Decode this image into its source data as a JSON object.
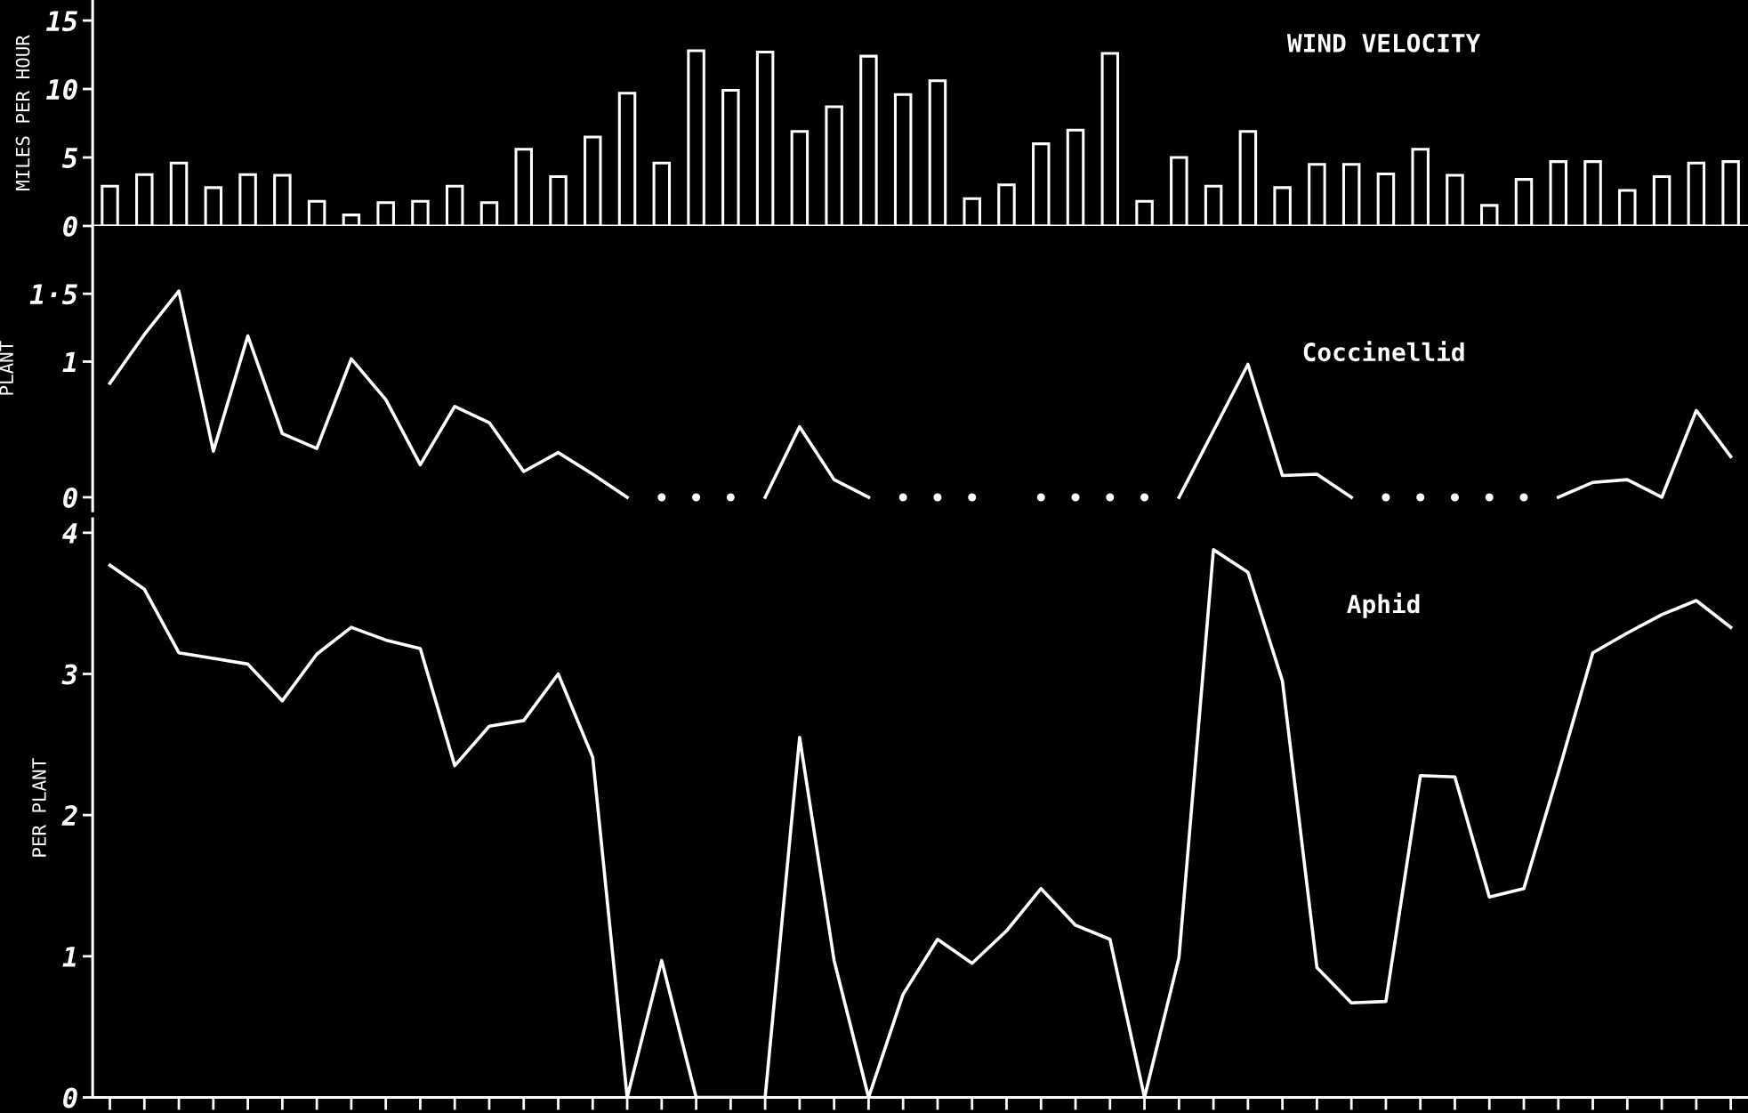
{
  "chart_data": [
    {
      "type": "bar",
      "title": "WIND VELOCITY",
      "ylabel": "MILES PER HOUR",
      "categories": [
        null,
        null,
        null,
        null,
        null,
        null,
        null,
        null,
        null,
        null,
        null,
        null,
        null,
        null,
        null,
        null,
        null,
        null,
        null,
        null,
        null,
        null,
        null,
        null,
        null,
        null,
        null,
        null,
        null,
        null,
        null,
        null,
        null,
        null,
        null,
        null,
        null,
        null,
        null,
        null,
        null,
        null,
        null,
        null,
        null,
        null,
        null,
        null
      ],
      "values": [
        2.9,
        3.75,
        4.6,
        2.8,
        3.75,
        3.7,
        1.8,
        0.8,
        1.7,
        1.8,
        2.9,
        1.7,
        5.6,
        3.6,
        6.5,
        9.7,
        4.6,
        12.8,
        9.9,
        12.7,
        6.9,
        8.7,
        12.4,
        9.6,
        10.6,
        2.0,
        3.0,
        6.0,
        7.0,
        12.6,
        1.8,
        5.0,
        2.9,
        6.9,
        2.8,
        4.5,
        4.5,
        3.8,
        5.6,
        3.7,
        1.5,
        3.4,
        4.7,
        4.7,
        2.6,
        3.6,
        4.6,
        4.7
      ],
      "color": "#ffffff",
      "ylim": [
        0,
        16.5
      ],
      "yticks": [
        0,
        5,
        10,
        15
      ],
      "tick_labels": "y"
    },
    {
      "type": "line",
      "title": "Coccinellid",
      "ylabel": "PLANT",
      "categories": [
        null,
        null,
        null,
        null,
        null,
        null,
        null,
        null,
        null,
        null,
        null,
        null,
        null,
        null,
        null,
        null,
        null,
        null,
        null,
        null,
        null,
        null,
        null,
        null,
        null,
        null,
        null,
        null,
        null,
        null,
        null,
        null,
        null,
        null,
        null,
        null,
        null,
        null,
        null,
        null,
        null,
        null,
        null,
        null,
        null,
        null,
        null,
        null
      ],
      "series": [
        {
          "type": "line",
          "color": "#ffffff",
          "values": [
            0.84,
            1.2,
            1.52,
            0.34,
            1.19,
            0.47,
            0.36,
            1.02,
            0.72,
            0.24,
            0.67,
            0.55,
            0.19,
            0.33,
            0.17,
            0,
            null,
            null,
            null,
            0,
            0.52,
            0.13,
            0,
            null,
            null,
            null,
            null,
            null,
            null,
            null,
            null,
            0,
            0.49,
            0.98,
            0.16,
            0.17,
            0,
            null,
            null,
            null,
            null,
            null,
            0,
            0.11,
            0.13,
            0,
            0.64,
            0.3
          ]
        },
        {
          "type": "scatter",
          "color": "#ffffff",
          "marker": "circle",
          "values": [
            null,
            null,
            null,
            null,
            null,
            null,
            null,
            null,
            null,
            null,
            null,
            null,
            null,
            null,
            null,
            null,
            0,
            0,
            0,
            null,
            null,
            null,
            null,
            0,
            0,
            0,
            null,
            0,
            0,
            0,
            0,
            null,
            null,
            null,
            null,
            null,
            null,
            0,
            0,
            0,
            0,
            0,
            null,
            null,
            null,
            null,
            null,
            null
          ]
        }
      ],
      "ylim": [
        -0.1,
        2.0
      ],
      "yticks": [
        0,
        1,
        {
          "value": 1.5,
          "label": "1·5"
        }
      ],
      "tick_labels": "y"
    },
    {
      "type": "line",
      "title": "Aphid",
      "ylabel": "PER PLANT",
      "categories": [
        null,
        null,
        null,
        null,
        null,
        null,
        null,
        null,
        null,
        null,
        null,
        null,
        null,
        null,
        null,
        null,
        null,
        null,
        null,
        null,
        null,
        null,
        null,
        null,
        null,
        null,
        null,
        null,
        null,
        null,
        null,
        null,
        null,
        null,
        null,
        null,
        null,
        null,
        null,
        null,
        null,
        null,
        null,
        null,
        null,
        null,
        null,
        null
      ],
      "series": [
        {
          "type": "line",
          "color": "#ffffff",
          "values": [
            3.77,
            3.6,
            3.15,
            3.11,
            3.07,
            2.81,
            3.14,
            3.33,
            3.24,
            3.18,
            2.35,
            2.63,
            2.67,
            3.0,
            2.41,
            0,
            0.97,
            0,
            0,
            0,
            2.55,
            0.97,
            0,
            0.73,
            1.12,
            0.95,
            1.18,
            1.48,
            1.22,
            1.12,
            0,
            0.99,
            3.88,
            3.72,
            2.95,
            0.92,
            0.67,
            0.68,
            2.28,
            2.27,
            1.42,
            1.48,
            2.3,
            3.15,
            3.29,
            3.42,
            3.52,
            3.33
          ]
        }
      ],
      "ylim": [
        0,
        4.1
      ],
      "yticks": [
        0,
        1,
        2,
        3,
        4
      ],
      "tick_labels": "y"
    }
  ]
}
